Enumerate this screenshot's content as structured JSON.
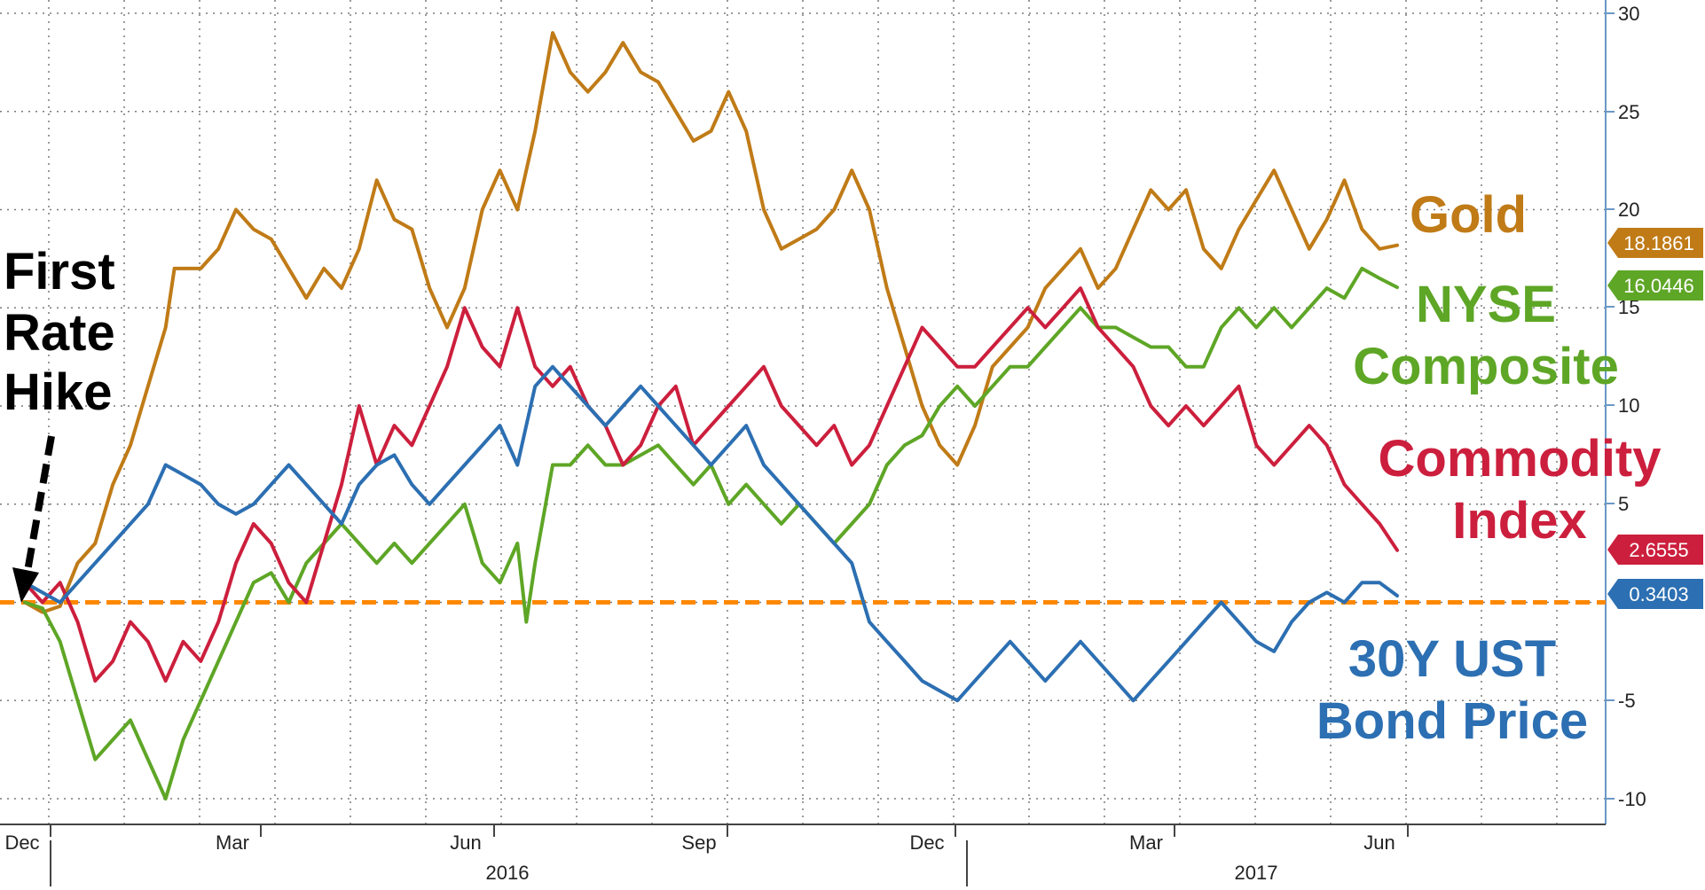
{
  "chart_data": {
    "type": "line",
    "x_tick_labels": [
      "Dec",
      "Mar",
      "Jun",
      "Sep",
      "Dec",
      "Mar",
      "Jun"
    ],
    "year_labels": [
      "2016",
      "2017"
    ],
    "y_tick_labels": [
      "30",
      "25",
      "20",
      "15",
      "10",
      "5",
      "-5",
      "-10"
    ],
    "ylim": [
      -11,
      30.5
    ],
    "grid": true,
    "colors": {
      "gold": "#c07b17",
      "nyse": "#5ea626",
      "commodity": "#cc1f3d",
      "bond": "#2c6fb2",
      "zero_line": "#ff8800",
      "axis": "#6a98c8",
      "grid": "#7a7a7a"
    },
    "series": [
      {
        "key": "gold",
        "name": "Gold",
        "label_lines": [
          "Gold"
        ],
        "last_value": "18.1861",
        "points": [
          [
            0,
            0
          ],
          [
            1,
            -0.5
          ],
          [
            2,
            -0.2
          ],
          [
            3,
            2
          ],
          [
            4,
            3
          ],
          [
            5,
            6
          ],
          [
            6,
            8
          ],
          [
            7,
            11
          ],
          [
            8,
            14
          ],
          [
            8.5,
            17
          ],
          [
            9,
            17
          ],
          [
            10,
            17
          ],
          [
            11,
            18
          ],
          [
            12,
            20
          ],
          [
            13,
            19
          ],
          [
            14,
            18.5
          ],
          [
            15,
            17
          ],
          [
            16,
            15.5
          ],
          [
            17,
            17
          ],
          [
            18,
            16
          ],
          [
            19,
            18
          ],
          [
            20,
            21.5
          ],
          [
            21,
            19.5
          ],
          [
            22,
            19
          ],
          [
            23,
            16
          ],
          [
            24,
            14
          ],
          [
            25,
            16
          ],
          [
            26,
            20
          ],
          [
            27,
            22
          ],
          [
            28,
            20
          ],
          [
            29,
            24
          ],
          [
            30,
            29
          ],
          [
            31,
            27
          ],
          [
            32,
            26
          ],
          [
            33,
            27
          ],
          [
            34,
            28.5
          ],
          [
            35,
            27
          ],
          [
            36,
            26.5
          ],
          [
            37,
            25
          ],
          [
            38,
            23.5
          ],
          [
            39,
            24
          ],
          [
            40,
            26
          ],
          [
            41,
            24
          ],
          [
            42,
            20
          ],
          [
            43,
            18
          ],
          [
            44,
            18.5
          ],
          [
            45,
            19
          ],
          [
            46,
            20
          ],
          [
            47,
            22
          ],
          [
            48,
            20
          ],
          [
            49,
            16
          ],
          [
            50,
            13
          ],
          [
            51,
            10
          ],
          [
            52,
            8
          ],
          [
            53,
            7
          ],
          [
            54,
            9
          ],
          [
            55,
            12
          ],
          [
            56,
            13
          ],
          [
            57,
            14
          ],
          [
            58,
            16
          ],
          [
            59,
            17
          ],
          [
            60,
            18
          ],
          [
            61,
            16
          ],
          [
            62,
            17
          ],
          [
            63,
            19
          ],
          [
            64,
            21
          ],
          [
            65,
            20
          ],
          [
            66,
            21
          ],
          [
            67,
            18
          ],
          [
            68,
            17
          ],
          [
            69,
            19
          ],
          [
            70,
            20.5
          ],
          [
            71,
            22
          ],
          [
            72,
            20
          ],
          [
            73,
            18
          ],
          [
            74,
            19.5
          ],
          [
            75,
            21.5
          ],
          [
            76,
            19
          ],
          [
            77,
            18
          ],
          [
            78,
            18.1861
          ]
        ]
      },
      {
        "key": "nyse",
        "name": "NYSE Composite",
        "label_lines": [
          "NYSE",
          "Composite"
        ],
        "last_value": "16.0446",
        "points": [
          [
            0,
            0
          ],
          [
            1,
            -0.3
          ],
          [
            2,
            -2
          ],
          [
            3,
            -5
          ],
          [
            4,
            -8
          ],
          [
            5,
            -7
          ],
          [
            6,
            -6
          ],
          [
            7,
            -8
          ],
          [
            8,
            -10
          ],
          [
            9,
            -7
          ],
          [
            10,
            -5
          ],
          [
            11,
            -3
          ],
          [
            12,
            -1
          ],
          [
            13,
            1
          ],
          [
            14,
            1.5
          ],
          [
            15,
            0
          ],
          [
            16,
            2
          ],
          [
            17,
            3
          ],
          [
            18,
            4
          ],
          [
            19,
            3
          ],
          [
            20,
            2
          ],
          [
            21,
            3
          ],
          [
            22,
            2
          ],
          [
            23,
            3
          ],
          [
            24,
            4
          ],
          [
            25,
            5
          ],
          [
            26,
            2
          ],
          [
            27,
            1
          ],
          [
            28,
            3
          ],
          [
            28.5,
            -1
          ],
          [
            29,
            2
          ],
          [
            30,
            7
          ],
          [
            31,
            7
          ],
          [
            32,
            8
          ],
          [
            33,
            7
          ],
          [
            34,
            7
          ],
          [
            35,
            7.5
          ],
          [
            36,
            8
          ],
          [
            37,
            7
          ],
          [
            38,
            6
          ],
          [
            39,
            7
          ],
          [
            40,
            5
          ],
          [
            41,
            6
          ],
          [
            42,
            5
          ],
          [
            43,
            4
          ],
          [
            44,
            5
          ],
          [
            45,
            4
          ],
          [
            46,
            3
          ],
          [
            47,
            4
          ],
          [
            48,
            5
          ],
          [
            49,
            7
          ],
          [
            50,
            8
          ],
          [
            51,
            8.5
          ],
          [
            52,
            10
          ],
          [
            53,
            11
          ],
          [
            54,
            10
          ],
          [
            55,
            11
          ],
          [
            56,
            12
          ],
          [
            57,
            12
          ],
          [
            58,
            13
          ],
          [
            59,
            14
          ],
          [
            60,
            15
          ],
          [
            61,
            14
          ],
          [
            62,
            14
          ],
          [
            63,
            13.5
          ],
          [
            64,
            13
          ],
          [
            65,
            13
          ],
          [
            66,
            12
          ],
          [
            67,
            12
          ],
          [
            68,
            14
          ],
          [
            69,
            15
          ],
          [
            70,
            14
          ],
          [
            71,
            15
          ],
          [
            72,
            14
          ],
          [
            73,
            15
          ],
          [
            74,
            16
          ],
          [
            75,
            15.5
          ],
          [
            76,
            17
          ],
          [
            77,
            16.5
          ],
          [
            78,
            16.0446
          ]
        ]
      },
      {
        "key": "commodity",
        "name": "Commodity Index",
        "label_lines": [
          "Commodity",
          "Index"
        ],
        "last_value": "2.6555",
        "points": [
          [
            0,
            1
          ],
          [
            1,
            0
          ],
          [
            2,
            1
          ],
          [
            3,
            -1
          ],
          [
            4,
            -4
          ],
          [
            5,
            -3
          ],
          [
            6,
            -1
          ],
          [
            7,
            -2
          ],
          [
            8,
            -4
          ],
          [
            9,
            -2
          ],
          [
            10,
            -3
          ],
          [
            11,
            -1
          ],
          [
            12,
            2
          ],
          [
            13,
            4
          ],
          [
            14,
            3
          ],
          [
            15,
            1
          ],
          [
            16,
            0
          ],
          [
            17,
            3
          ],
          [
            18,
            6
          ],
          [
            19,
            10
          ],
          [
            20,
            7
          ],
          [
            21,
            9
          ],
          [
            22,
            8
          ],
          [
            23,
            10
          ],
          [
            24,
            12
          ],
          [
            25,
            15
          ],
          [
            26,
            13
          ],
          [
            27,
            12
          ],
          [
            28,
            15
          ],
          [
            29,
            12
          ],
          [
            30,
            11
          ],
          [
            31,
            12
          ],
          [
            32,
            10
          ],
          [
            33,
            9
          ],
          [
            34,
            7
          ],
          [
            35,
            8
          ],
          [
            36,
            10
          ],
          [
            37,
            11
          ],
          [
            38,
            8
          ],
          [
            39,
            9
          ],
          [
            40,
            10
          ],
          [
            41,
            11
          ],
          [
            42,
            12
          ],
          [
            43,
            10
          ],
          [
            44,
            9
          ],
          [
            45,
            8
          ],
          [
            46,
            9
          ],
          [
            47,
            7
          ],
          [
            48,
            8
          ],
          [
            49,
            10
          ],
          [
            50,
            12
          ],
          [
            51,
            14
          ],
          [
            52,
            13
          ],
          [
            53,
            12
          ],
          [
            54,
            12
          ],
          [
            55,
            13
          ],
          [
            56,
            14
          ],
          [
            57,
            15
          ],
          [
            58,
            14
          ],
          [
            59,
            15
          ],
          [
            60,
            16
          ],
          [
            61,
            14
          ],
          [
            62,
            13
          ],
          [
            63,
            12
          ],
          [
            64,
            10
          ],
          [
            65,
            9
          ],
          [
            66,
            10
          ],
          [
            67,
            9
          ],
          [
            68,
            10
          ],
          [
            69,
            11
          ],
          [
            70,
            8
          ],
          [
            71,
            7
          ],
          [
            72,
            8
          ],
          [
            73,
            9
          ],
          [
            74,
            8
          ],
          [
            75,
            6
          ],
          [
            76,
            5
          ],
          [
            77,
            4
          ],
          [
            78,
            2.6555
          ]
        ]
      },
      {
        "key": "bond",
        "name": "30Y UST Bond Price",
        "label_lines": [
          "30Y UST",
          "Bond Price"
        ],
        "last_value": "0.3403",
        "points": [
          [
            0,
            1
          ],
          [
            1,
            0.5
          ],
          [
            2,
            0
          ],
          [
            3,
            1
          ],
          [
            4,
            2
          ],
          [
            5,
            3
          ],
          [
            6,
            4
          ],
          [
            7,
            5
          ],
          [
            8,
            7
          ],
          [
            9,
            6.5
          ],
          [
            10,
            6
          ],
          [
            11,
            5
          ],
          [
            12,
            4.5
          ],
          [
            13,
            5
          ],
          [
            14,
            6
          ],
          [
            15,
            7
          ],
          [
            16,
            6
          ],
          [
            17,
            5
          ],
          [
            18,
            4
          ],
          [
            19,
            6
          ],
          [
            20,
            7
          ],
          [
            21,
            7.5
          ],
          [
            22,
            6
          ],
          [
            23,
            5
          ],
          [
            24,
            6
          ],
          [
            25,
            7
          ],
          [
            26,
            8
          ],
          [
            27,
            9
          ],
          [
            28,
            7
          ],
          [
            29,
            11
          ],
          [
            30,
            12
          ],
          [
            31,
            11
          ],
          [
            32,
            10
          ],
          [
            33,
            9
          ],
          [
            34,
            10
          ],
          [
            35,
            11
          ],
          [
            36,
            10
          ],
          [
            37,
            9
          ],
          [
            38,
            8
          ],
          [
            39,
            7
          ],
          [
            40,
            8
          ],
          [
            41,
            9
          ],
          [
            42,
            7
          ],
          [
            43,
            6
          ],
          [
            44,
            5
          ],
          [
            45,
            4
          ],
          [
            46,
            3
          ],
          [
            47,
            2
          ],
          [
            48,
            -1
          ],
          [
            49,
            -2
          ],
          [
            50,
            -3
          ],
          [
            51,
            -4
          ],
          [
            52,
            -4.5
          ],
          [
            53,
            -5
          ],
          [
            54,
            -4
          ],
          [
            55,
            -3
          ],
          [
            56,
            -2
          ],
          [
            57,
            -3
          ],
          [
            58,
            -4
          ],
          [
            59,
            -3
          ],
          [
            60,
            -2
          ],
          [
            61,
            -3
          ],
          [
            62,
            -4
          ],
          [
            63,
            -5
          ],
          [
            64,
            -4
          ],
          [
            65,
            -3
          ],
          [
            66,
            -2
          ],
          [
            67,
            -1
          ],
          [
            68,
            0
          ],
          [
            69,
            -1
          ],
          [
            70,
            -2
          ],
          [
            71,
            -2.5
          ],
          [
            72,
            -1
          ],
          [
            73,
            0
          ],
          [
            74,
            0.5
          ],
          [
            75,
            0
          ],
          [
            76,
            1
          ],
          [
            77,
            1
          ],
          [
            78,
            0.3403
          ]
        ]
      }
    ],
    "annotation": {
      "lines": [
        "First",
        "Rate",
        "Hike"
      ]
    }
  }
}
